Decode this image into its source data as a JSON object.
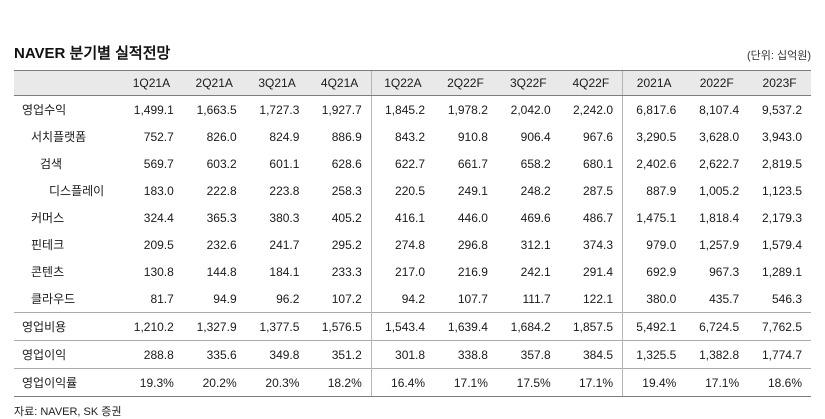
{
  "title": "NAVER 분기별 실적전망",
  "unit_note": "(단위: 십억원)",
  "source": "자료: NAVER, SK 증권",
  "table": {
    "columns": [
      {
        "label": "1Q21A",
        "group_start": false
      },
      {
        "label": "2Q21A",
        "group_start": false
      },
      {
        "label": "3Q21A",
        "group_start": false
      },
      {
        "label": "4Q21A",
        "group_start": false
      },
      {
        "label": "1Q22A",
        "group_start": true
      },
      {
        "label": "2Q22F",
        "group_start": false
      },
      {
        "label": "3Q22F",
        "group_start": false
      },
      {
        "label": "4Q22F",
        "group_start": false
      },
      {
        "label": "2021A",
        "group_start": true
      },
      {
        "label": "2022F",
        "group_start": false
      },
      {
        "label": "2023F",
        "group_start": false
      }
    ],
    "rows": [
      {
        "label": "영업수익",
        "indent": 0,
        "section_break": false,
        "values": [
          "1,499.1",
          "1,663.5",
          "1,727.3",
          "1,927.7",
          "1,845.2",
          "1,978.2",
          "2,042.0",
          "2,242.0",
          "6,817.6",
          "8,107.4",
          "9,537.2"
        ]
      },
      {
        "label": "서치플랫폼",
        "indent": 1,
        "section_break": false,
        "values": [
          "752.7",
          "826.0",
          "824.9",
          "886.9",
          "843.2",
          "910.8",
          "906.4",
          "967.6",
          "3,290.5",
          "3,628.0",
          "3,943.0"
        ]
      },
      {
        "label": "검색",
        "indent": 2,
        "section_break": false,
        "values": [
          "569.7",
          "603.2",
          "601.1",
          "628.6",
          "622.7",
          "661.7",
          "658.2",
          "680.1",
          "2,402.6",
          "2,622.7",
          "2,819.5"
        ]
      },
      {
        "label": "디스플레이",
        "indent": 3,
        "section_break": false,
        "values": [
          "183.0",
          "222.8",
          "223.8",
          "258.3",
          "220.5",
          "249.1",
          "248.2",
          "287.5",
          "887.9",
          "1,005.2",
          "1,123.5"
        ]
      },
      {
        "label": "커머스",
        "indent": 1,
        "section_break": false,
        "values": [
          "324.4",
          "365.3",
          "380.3",
          "405.2",
          "416.1",
          "446.0",
          "469.6",
          "486.7",
          "1,475.1",
          "1,818.4",
          "2,179.3"
        ]
      },
      {
        "label": "핀테크",
        "indent": 1,
        "section_break": false,
        "values": [
          "209.5",
          "232.6",
          "241.7",
          "295.2",
          "274.8",
          "296.8",
          "312.1",
          "374.3",
          "979.0",
          "1,257.9",
          "1,579.4"
        ]
      },
      {
        "label": "콘텐츠",
        "indent": 1,
        "section_break": false,
        "values": [
          "130.8",
          "144.8",
          "184.1",
          "233.3",
          "217.0",
          "216.9",
          "242.1",
          "291.4",
          "692.9",
          "967.3",
          "1,289.1"
        ]
      },
      {
        "label": "클라우드",
        "indent": 1,
        "section_break": false,
        "values": [
          "81.7",
          "94.9",
          "96.2",
          "107.2",
          "94.2",
          "107.7",
          "111.7",
          "122.1",
          "380.0",
          "435.7",
          "546.3"
        ]
      },
      {
        "label": "영업비용",
        "indent": 0,
        "section_break": true,
        "values": [
          "1,210.2",
          "1,327.9",
          "1,377.5",
          "1,576.5",
          "1,543.4",
          "1,639.4",
          "1,684.2",
          "1,857.5",
          "5,492.1",
          "6,724.5",
          "7,762.5"
        ]
      },
      {
        "label": "영업이익",
        "indent": 0,
        "section_break": true,
        "values": [
          "288.8",
          "335.6",
          "349.8",
          "351.2",
          "301.8",
          "338.8",
          "357.8",
          "384.5",
          "1,325.5",
          "1,382.8",
          "1,774.7"
        ]
      },
      {
        "label": "영업이익률",
        "indent": 0,
        "section_break": true,
        "values": [
          "19.3%",
          "20.2%",
          "20.3%",
          "18.2%",
          "16.4%",
          "17.1%",
          "17.5%",
          "17.1%",
          "19.4%",
          "17.1%",
          "18.6%"
        ]
      }
    ]
  }
}
